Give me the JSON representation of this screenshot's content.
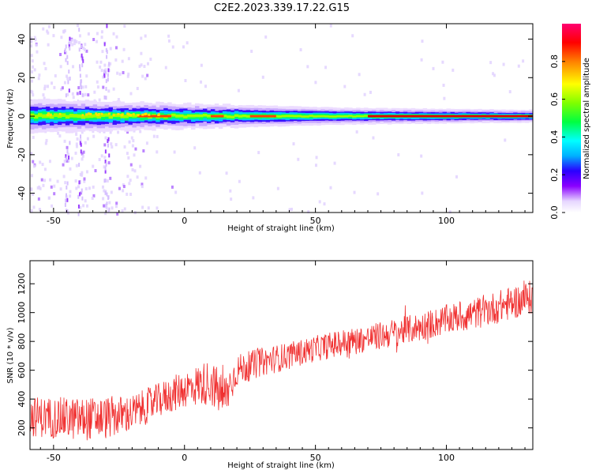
{
  "title": "C2E2.2023.339.17.22.G15",
  "chart_data": [
    {
      "type": "heatmap",
      "xlabel": "Height of straight line (km)",
      "ylabel": "Frequency (Hz)",
      "xlim": [
        -59,
        133
      ],
      "ylim": [
        -50,
        48
      ],
      "x_ticks": [
        -50,
        0,
        50,
        100
      ],
      "y_ticks": [
        -40,
        -20,
        0,
        20,
        40
      ],
      "colorbar": {
        "label": "Normalized spectral amplitude",
        "range": [
          0,
          1
        ],
        "ticks": [
          0.0,
          0.2,
          0.4,
          0.6,
          0.8
        ],
        "colors": [
          "#ffffff",
          "#e6d6ff",
          "#8a00ff",
          "#2a00ff",
          "#00b0ff",
          "#00ffff",
          "#00ff40",
          "#80ff00",
          "#ffff00",
          "#ff8000",
          "#ff0000",
          "#ff0070"
        ]
      },
      "description_data": {
        "band_center_hz": 0,
        "band_half_width_hz": [
          4,
          3,
          2,
          1.5
        ],
        "band_half_width_at_x": [
          -59,
          0,
          60,
          133
        ],
        "noise_columns_x": [
          -45,
          -40,
          -30
        ]
      }
    },
    {
      "type": "line",
      "xlabel": "Height of straight line (km)",
      "ylabel": "SNR (10 * v/v)",
      "xlim": [
        -59,
        133
      ],
      "ylim": [
        50,
        1360
      ],
      "x_ticks": [
        -50,
        0,
        50,
        100
      ],
      "y_ticks": [
        200,
        400,
        600,
        800,
        1000,
        1200
      ],
      "series": [
        {
          "color": "#f03030",
          "trend_x": [
            -59,
            -40,
            -30,
            -20,
            -10,
            0,
            10,
            15,
            20,
            30,
            40,
            50,
            60,
            70,
            80,
            90,
            100,
            110,
            120,
            133
          ],
          "trend_y": [
            280,
            260,
            270,
            300,
            390,
            470,
            520,
            400,
            600,
            660,
            700,
            750,
            790,
            820,
            860,
            900,
            950,
            990,
            1040,
            1110
          ],
          "noise_amplitude": [
            140,
            150,
            150,
            130,
            120,
            130,
            160,
            170,
            110,
            100,
            95,
            90,
            95,
            95,
            100,
            100,
            105,
            110,
            115,
            120
          ]
        }
      ]
    }
  ]
}
